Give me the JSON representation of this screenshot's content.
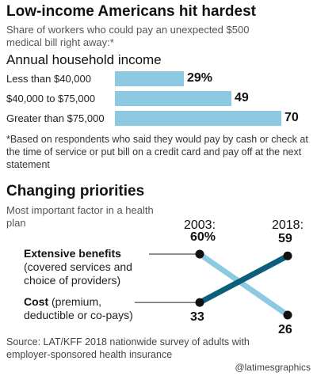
{
  "chart_data": [
    {
      "type": "bar",
      "title": "Low-income Americans hit hardest",
      "subtitle": "Share of workers who could pay an unexpected $500 medical bill right away:*",
      "group_label": "Annual household income",
      "categories": [
        "Less than $40,000",
        "$40,000 to $75,000",
        "Greater than $75,000"
      ],
      "values": [
        29,
        49,
        70
      ],
      "value_labels": [
        "29%",
        "49",
        "70"
      ],
      "footnote": "*Based on respondents who said they would pay by cash or check at the time of service or put bill on a credit card and pay off at the next statement"
    },
    {
      "type": "line",
      "title": "Changing priorities",
      "subtitle": "Most important factor in a health plan",
      "x": [
        "2003:",
        "2018:"
      ],
      "series": [
        {
          "name": "Extensive benefits",
          "name_detail": "(covered services and choice of providers)",
          "values": [
            60,
            26
          ],
          "value_labels": [
            "60%",
            "26"
          ],
          "color": "#8ec9e2"
        },
        {
          "name": "Cost",
          "name_detail": "(premium, deductible or co-pays)",
          "values": [
            33,
            59
          ],
          "value_labels": [
            "33",
            "59"
          ],
          "color": "#0d5e7a"
        }
      ]
    }
  ],
  "source": "Source: LAT/KFF 2018 nationwide survey of adults with employer-sponsored health insurance",
  "credit": "@latimesgraphics"
}
